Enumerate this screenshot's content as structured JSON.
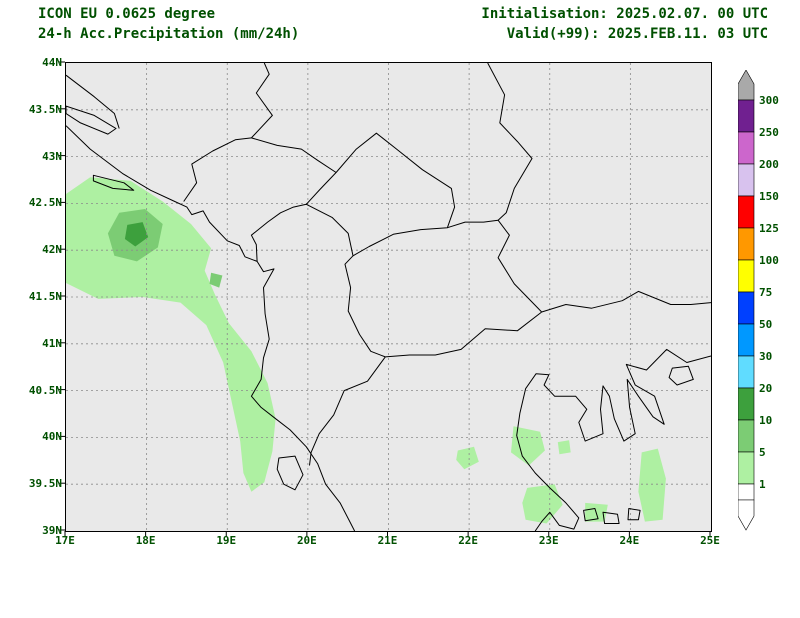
{
  "header": {
    "line1_left": "ICON EU 0.0625 degree",
    "line2_left": "24-h Acc.Precipitation (mm/24h)",
    "line1_right": "Initialisation: 2025.02.07. 00 UTC",
    "line2_right": "Valid(+99): 2025.FEB.11. 03 UTC"
  },
  "axes": {
    "lon_min": 17,
    "lon_max": 25,
    "lat_min": 39,
    "lat_max": 44,
    "lat_tick_step": 0.5,
    "lon_tick_step": 1,
    "lat_labels": [
      "44N",
      "43.5N",
      "43N",
      "42.5N",
      "42N",
      "41.5N",
      "41N",
      "40.5N",
      "40N",
      "39.5N",
      "39N"
    ],
    "lon_labels": [
      "17E",
      "18E",
      "19E",
      "20E",
      "21E",
      "22E",
      "23E",
      "24E",
      "25E"
    ]
  },
  "legend": {
    "unit": "mm/24h",
    "levels": [
      "300",
      "250",
      "200",
      "150",
      "125",
      "100",
      "75",
      "50",
      "30",
      "20",
      "10",
      "5",
      "1"
    ],
    "segment_colors": [
      "#702090",
      "#cc66cc",
      "#d8c2ee",
      "#ff0000",
      "#ff9800",
      "#ffff00",
      "#0040ff",
      "#0098ff",
      "#60dcff",
      "#3da03d",
      "#7ccc74",
      "#aef0a2"
    ],
    "above_color": "#a9a9a9",
    "below_color": "#ffffff"
  },
  "colors": {
    "text": "#005000",
    "map_background": "#e9e9e9",
    "grid": "#8a8a8a",
    "outline": "#000000"
  },
  "chart_data": {
    "type": "heatmap",
    "units": "mm/24h",
    "description": "24-h accumulated precipitation shaded by legend levels over the Balkans (17E-25E, 39N-44N)",
    "precip_areas": [
      {
        "range_mm": "1-5",
        "color": "#aef0a2",
        "points": [
          [
            17.0,
            42.6
          ],
          [
            17.3,
            42.78
          ],
          [
            17.8,
            42.74
          ],
          [
            18.2,
            42.52
          ],
          [
            18.55,
            42.28
          ],
          [
            18.8,
            42.02
          ],
          [
            18.72,
            41.78
          ],
          [
            18.85,
            41.52
          ],
          [
            19.02,
            41.22
          ],
          [
            19.3,
            40.92
          ],
          [
            19.5,
            40.58
          ],
          [
            19.6,
            40.2
          ],
          [
            19.56,
            39.85
          ],
          [
            19.46,
            39.52
          ],
          [
            19.3,
            39.42
          ],
          [
            19.2,
            39.62
          ],
          [
            19.16,
            39.96
          ],
          [
            19.06,
            40.36
          ],
          [
            18.95,
            40.8
          ],
          [
            18.74,
            41.2
          ],
          [
            18.42,
            41.44
          ],
          [
            17.95,
            41.5
          ],
          [
            17.4,
            41.48
          ],
          [
            17.0,
            41.65
          ]
        ]
      },
      {
        "range_mm": "5-10",
        "color": "#7ccc74",
        "points": [
          [
            17.52,
            42.18
          ],
          [
            17.66,
            42.4
          ],
          [
            17.98,
            42.44
          ],
          [
            18.2,
            42.28
          ],
          [
            18.14,
            42.03
          ],
          [
            17.88,
            41.88
          ],
          [
            17.6,
            41.94
          ]
        ]
      },
      {
        "range_mm": "10-20",
        "color": "#3da03d",
        "points": [
          [
            17.76,
            42.27
          ],
          [
            17.95,
            42.3
          ],
          [
            18.02,
            42.14
          ],
          [
            17.86,
            42.04
          ],
          [
            17.73,
            42.12
          ]
        ]
      },
      {
        "range_mm": "5-10",
        "color": "#7ccc74",
        "points": [
          [
            18.8,
            41.76
          ],
          [
            18.94,
            41.73
          ],
          [
            18.9,
            41.6
          ],
          [
            18.78,
            41.64
          ]
        ]
      },
      {
        "range_mm": "1-5",
        "color": "#aef0a2",
        "points": [
          [
            21.86,
            39.86
          ],
          [
            22.06,
            39.9
          ],
          [
            22.12,
            39.74
          ],
          [
            21.94,
            39.66
          ],
          [
            21.84,
            39.76
          ]
        ]
      },
      {
        "range_mm": "1-5",
        "color": "#aef0a2",
        "points": [
          [
            22.55,
            40.12
          ],
          [
            22.88,
            40.06
          ],
          [
            22.94,
            39.86
          ],
          [
            22.74,
            39.7
          ],
          [
            22.52,
            39.84
          ]
        ]
      },
      {
        "range_mm": "1-5",
        "color": "#aef0a2",
        "points": [
          [
            22.72,
            39.46
          ],
          [
            23.06,
            39.5
          ],
          [
            23.16,
            39.28
          ],
          [
            22.96,
            39.08
          ],
          [
            22.7,
            39.12
          ],
          [
            22.66,
            39.3
          ]
        ]
      },
      {
        "range_mm": "1-5",
        "color": "#aef0a2",
        "points": [
          [
            23.44,
            39.3
          ],
          [
            23.72,
            39.28
          ],
          [
            23.68,
            39.1
          ],
          [
            23.44,
            39.1
          ]
        ]
      },
      {
        "range_mm": "1-5",
        "color": "#aef0a2",
        "points": [
          [
            24.14,
            39.84
          ],
          [
            24.34,
            39.88
          ],
          [
            24.44,
            39.56
          ],
          [
            24.4,
            39.12
          ],
          [
            24.18,
            39.1
          ],
          [
            24.1,
            39.42
          ]
        ]
      },
      {
        "range_mm": "1-5",
        "color": "#aef0a2",
        "points": [
          [
            23.1,
            39.95
          ],
          [
            23.24,
            39.97
          ],
          [
            23.26,
            39.84
          ],
          [
            23.12,
            39.82
          ]
        ]
      }
    ]
  }
}
